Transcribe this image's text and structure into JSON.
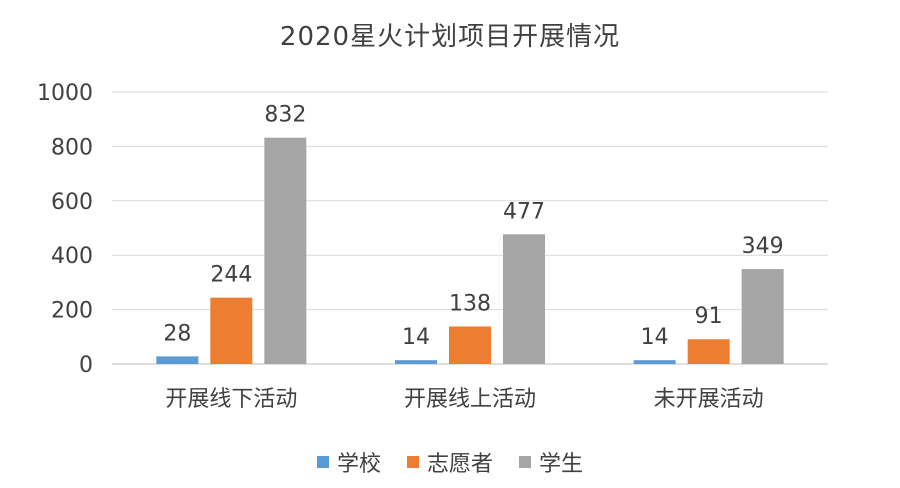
{
  "chart_data": {
    "type": "bar",
    "title": "2020星火计划项目开展情况",
    "categories": [
      "开展线下活动",
      "开展线上活动",
      "未开展活动"
    ],
    "series": [
      {
        "name": "学校",
        "values": [
          28,
          14,
          14
        ],
        "color": "#5B9BD5"
      },
      {
        "name": "志愿者",
        "values": [
          244,
          138,
          91
        ],
        "color": "#ED7D31"
      },
      {
        "name": "学生",
        "values": [
          832,
          477,
          349
        ],
        "color": "#A5A5A5"
      }
    ],
    "ylim": [
      0,
      1000
    ],
    "yticks": [
      0,
      200,
      400,
      600,
      800,
      1000
    ],
    "xlabel": "",
    "ylabel": "",
    "grid": true,
    "legend_position": "bottom"
  }
}
